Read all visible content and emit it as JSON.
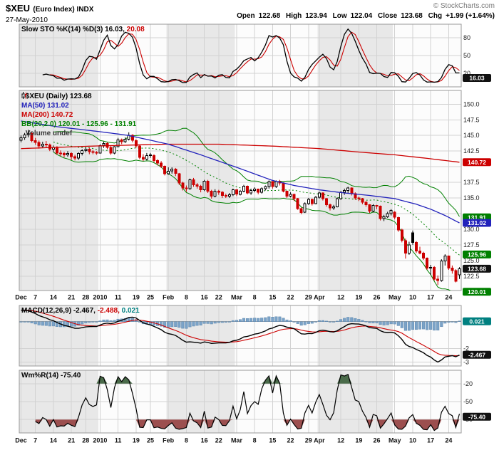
{
  "header": {
    "symbol": "$XEU",
    "name": "(Euro Index) INDX",
    "date": "27-May-2010",
    "copyright": "© StockCharts.com",
    "quote": {
      "open_l": "Open",
      "open_v": "122.68",
      "high_l": "High",
      "high_v": "123.94",
      "low_l": "Low",
      "low_v": "122.04",
      "close_l": "Close",
      "close_v": "123.68",
      "chg_l": "Chg",
      "chg_v": "+1.99 (+1.64%)"
    }
  },
  "panels": {
    "stoch": {
      "label": "Slow STO %K(14) %D(3)",
      "k_value": "16.03,",
      "d_value": "20.08"
    },
    "main": {
      "symbol_label": "$XEU (Daily)",
      "close_value": "123.68",
      "ma50_label": "MA(50) 131.02",
      "ma200_label": "MA(200) 140.72",
      "bb_label": "BB(20,2.0) 120.01 - 125.96 - 131.91",
      "volume_label": "Volume undef"
    },
    "macd": {
      "label": "MACD(12,26,9)",
      "macd_value": "-2.467,",
      "signal_value": "-2.488,",
      "hist_value": "0.021"
    },
    "wmr": {
      "label": "Wm%R(14)",
      "value": "-75.40"
    }
  },
  "chart_data": {
    "type": "candlestick-multi-panel",
    "title": "$XEU (Euro Index) INDX - Daily",
    "x_ticks": [
      {
        "i": 0,
        "label": "Dec"
      },
      {
        "i": 4,
        "label": "7"
      },
      {
        "i": 9,
        "label": "14"
      },
      {
        "i": 14,
        "label": "21"
      },
      {
        "i": 18,
        "label": "28"
      },
      {
        "i": 22,
        "label": "2010"
      },
      {
        "i": 27,
        "label": "11"
      },
      {
        "i": 32,
        "label": "19"
      },
      {
        "i": 36,
        "label": "25"
      },
      {
        "i": 41,
        "label": "Feb"
      },
      {
        "i": 46,
        "label": "8"
      },
      {
        "i": 51,
        "label": "16"
      },
      {
        "i": 55,
        "label": "22"
      },
      {
        "i": 60,
        "label": "Mar"
      },
      {
        "i": 65,
        "label": "8"
      },
      {
        "i": 70,
        "label": "15"
      },
      {
        "i": 75,
        "label": "22"
      },
      {
        "i": 80,
        "label": "29"
      },
      {
        "i": 83,
        "label": "Apr"
      },
      {
        "i": 89,
        "label": "12"
      },
      {
        "i": 94,
        "label": "19"
      },
      {
        "i": 99,
        "label": "26"
      },
      {
        "i": 104,
        "label": "May"
      },
      {
        "i": 109,
        "label": "10"
      },
      {
        "i": 114,
        "label": "17"
      },
      {
        "i": 119,
        "label": "24"
      }
    ],
    "month_bands": [
      {
        "start": 0,
        "end": 21,
        "shade": true
      },
      {
        "start": 22,
        "end": 40,
        "shade": false
      },
      {
        "start": 41,
        "end": 59,
        "shade": true
      },
      {
        "start": 60,
        "end": 82,
        "shade": false
      },
      {
        "start": 83,
        "end": 103,
        "shade": true
      },
      {
        "start": 104,
        "end": 122,
        "shade": false
      }
    ],
    "ohlc": [
      [
        144.2,
        145.0,
        143.9,
        144.6
      ],
      [
        144.6,
        145.4,
        144.3,
        145.1
      ],
      [
        145.1,
        145.9,
        144.7,
        145.3
      ],
      [
        145.3,
        145.5,
        143.9,
        144.2
      ],
      [
        144.2,
        144.6,
        143.5,
        143.9
      ],
      [
        143.9,
        144.2,
        142.9,
        143.3
      ],
      [
        143.3,
        144.0,
        143.0,
        143.6
      ],
      [
        143.6,
        144.1,
        143.1,
        143.5
      ],
      [
        143.5,
        143.7,
        142.5,
        142.8
      ],
      [
        142.8,
        143.4,
        142.4,
        143.1
      ],
      [
        143.1,
        143.3,
        141.9,
        142.2
      ],
      [
        142.2,
        142.6,
        141.7,
        142.1
      ],
      [
        142.1,
        142.4,
        141.5,
        141.9
      ],
      [
        141.9,
        142.5,
        141.6,
        142.1
      ],
      [
        142.1,
        142.3,
        141.1,
        141.6
      ],
      [
        141.6,
        141.9,
        141.0,
        141.4
      ],
      [
        141.4,
        142.3,
        141.1,
        142.1
      ],
      [
        142.1,
        142.8,
        141.8,
        142.6
      ],
      [
        142.6,
        143.0,
        142.3,
        142.8
      ],
      [
        142.8,
        143.0,
        142.0,
        142.4
      ],
      [
        142.4,
        142.7,
        142.0,
        142.3
      ],
      [
        142.3,
        142.5,
        141.9,
        142.2
      ],
      [
        142.2,
        143.6,
        142.1,
        143.4
      ],
      [
        143.4,
        144.0,
        143.0,
        143.7
      ],
      [
        143.7,
        143.9,
        142.8,
        143.1
      ],
      [
        143.1,
        143.3,
        141.9,
        142.2
      ],
      [
        142.2,
        143.3,
        142.0,
        143.2
      ],
      [
        143.2,
        144.6,
        143.1,
        144.3
      ],
      [
        144.3,
        144.5,
        143.6,
        144.0
      ],
      [
        144.0,
        144.7,
        143.8,
        144.4
      ],
      [
        144.4,
        145.5,
        144.2,
        145.0
      ],
      [
        145.0,
        145.2,
        143.9,
        144.2
      ],
      [
        144.2,
        144.4,
        143.0,
        143.3
      ],
      [
        143.3,
        143.5,
        141.2,
        141.5
      ],
      [
        141.5,
        142.0,
        140.9,
        141.2
      ],
      [
        141.2,
        142.2,
        141.0,
        141.8
      ],
      [
        141.9,
        142.2,
        141.4,
        141.8
      ],
      [
        141.8,
        142.0,
        140.7,
        141.0
      ],
      [
        141.0,
        141.2,
        140.2,
        140.6
      ],
      [
        140.6,
        140.9,
        139.8,
        140.1
      ],
      [
        140.1,
        140.2,
        138.6,
        138.9
      ],
      [
        138.9,
        139.9,
        138.7,
        139.3
      ],
      [
        139.3,
        139.9,
        138.9,
        139.6
      ],
      [
        139.6,
        139.8,
        138.5,
        138.9
      ],
      [
        138.9,
        139.0,
        137.1,
        137.4
      ],
      [
        137.4,
        137.6,
        136.2,
        136.6
      ],
      [
        136.6,
        137.0,
        136.0,
        136.5
      ],
      [
        136.5,
        138.1,
        136.3,
        137.9
      ],
      [
        137.9,
        138.2,
        136.8,
        137.1
      ],
      [
        137.1,
        137.4,
        136.5,
        136.9
      ],
      [
        136.9,
        137.1,
        135.9,
        136.3
      ],
      [
        136.3,
        137.9,
        136.1,
        137.7
      ],
      [
        137.7,
        137.9,
        135.8,
        136.1
      ],
      [
        136.1,
        136.3,
        134.9,
        135.3
      ],
      [
        135.3,
        136.4,
        135.1,
        136.1
      ],
      [
        136.1,
        136.3,
        135.5,
        135.9
      ],
      [
        135.9,
        136.1,
        135.0,
        135.4
      ],
      [
        135.4,
        135.7,
        135.0,
        135.3
      ],
      [
        135.3,
        135.8,
        135.0,
        135.5
      ],
      [
        135.5,
        136.5,
        135.3,
        136.3
      ],
      [
        136.3,
        136.4,
        135.3,
        135.6
      ],
      [
        135.6,
        136.3,
        135.4,
        136.1
      ],
      [
        136.1,
        137.1,
        135.9,
        136.9
      ],
      [
        136.9,
        137.0,
        135.6,
        135.8
      ],
      [
        135.8,
        136.5,
        135.5,
        136.2
      ],
      [
        136.2,
        136.7,
        135.9,
        136.4
      ],
      [
        136.4,
        136.5,
        135.6,
        135.9
      ],
      [
        135.9,
        136.7,
        135.7,
        136.5
      ],
      [
        136.5,
        137.0,
        136.2,
        136.8
      ],
      [
        136.8,
        137.8,
        136.5,
        137.6
      ],
      [
        137.6,
        137.7,
        136.5,
        136.8
      ],
      [
        136.8,
        137.8,
        136.6,
        137.6
      ],
      [
        137.6,
        137.9,
        137.0,
        137.4
      ],
      [
        137.4,
        137.5,
        135.9,
        136.1
      ],
      [
        136.1,
        136.2,
        135.0,
        135.3
      ],
      [
        135.3,
        135.9,
        135.1,
        135.6
      ],
      [
        135.6,
        135.7,
        134.5,
        134.9
      ],
      [
        134.9,
        135.0,
        133.1,
        133.3
      ],
      [
        133.3,
        133.5,
        132.4,
        132.7
      ],
      [
        132.7,
        134.3,
        132.6,
        134.1
      ],
      [
        134.1,
        135.0,
        133.9,
        134.8
      ],
      [
        134.8,
        134.9,
        133.8,
        134.1
      ],
      [
        134.1,
        135.3,
        134.0,
        135.1
      ],
      [
        135.1,
        136.0,
        134.9,
        135.8
      ],
      [
        135.8,
        135.9,
        134.6,
        134.9
      ],
      [
        134.9,
        135.0,
        133.6,
        133.9
      ],
      [
        133.9,
        134.1,
        133.0,
        133.4
      ],
      [
        133.4,
        133.9,
        133.1,
        133.6
      ],
      [
        133.6,
        135.1,
        133.5,
        134.9
      ],
      [
        134.9,
        136.1,
        134.7,
        135.9
      ],
      [
        135.9,
        136.5,
        135.5,
        136.2
      ],
      [
        136.2,
        136.8,
        135.8,
        136.6
      ],
      [
        136.6,
        136.7,
        135.4,
        135.7
      ],
      [
        135.7,
        135.9,
        134.7,
        135.0
      ],
      [
        135.0,
        135.2,
        134.5,
        134.9
      ],
      [
        134.9,
        135.0,
        134.0,
        134.3
      ],
      [
        134.3,
        134.5,
        133.6,
        133.9
      ],
      [
        133.9,
        134.0,
        132.6,
        132.9
      ],
      [
        132.9,
        134.0,
        132.7,
        133.8
      ],
      [
        133.8,
        133.9,
        133.2,
        133.7
      ],
      [
        133.7,
        133.8,
        131.4,
        131.7
      ],
      [
        131.7,
        132.3,
        131.3,
        132.0
      ],
      [
        132.0,
        132.8,
        131.8,
        132.5
      ],
      [
        132.5,
        133.2,
        132.2,
        133.0
      ],
      [
        132.7,
        132.9,
        131.6,
        131.9
      ],
      [
        131.9,
        132.0,
        129.6,
        129.9
      ],
      [
        129.9,
        130.1,
        127.9,
        128.2
      ],
      [
        128.2,
        128.5,
        125.3,
        126.2
      ],
      [
        126.2,
        128.0,
        125.9,
        127.5
      ],
      [
        129.4,
        129.8,
        127.5,
        127.9
      ],
      [
        127.9,
        128.1,
        126.2,
        126.5
      ],
      [
        126.5,
        127.2,
        126.0,
        126.2
      ],
      [
        126.2,
        126.4,
        125.1,
        125.4
      ],
      [
        125.4,
        125.5,
        123.5,
        123.8
      ],
      [
        123.8,
        124.3,
        122.7,
        123.9
      ],
      [
        123.9,
        124.1,
        121.8,
        122.0
      ],
      [
        122.0,
        122.6,
        121.1,
        121.8
      ],
      [
        121.8,
        125.2,
        121.6,
        124.9
      ],
      [
        124.9,
        126.0,
        124.2,
        125.7
      ],
      [
        125.7,
        125.8,
        123.5,
        123.8
      ],
      [
        123.8,
        124.2,
        122.9,
        123.4
      ],
      [
        123.4,
        123.6,
        121.5,
        121.69
      ],
      [
        122.68,
        123.94,
        122.04,
        123.68
      ]
    ],
    "overlays": {
      "ma50": {
        "period": 50,
        "last": 131.02,
        "points": [
          [
            0,
            147.3
          ],
          [
            10,
            146.4
          ],
          [
            22,
            145.6
          ],
          [
            30,
            145.0
          ],
          [
            41,
            143.6
          ],
          [
            50,
            141.9
          ],
          [
            60,
            139.9
          ],
          [
            70,
            137.8
          ],
          [
            76,
            137.0
          ],
          [
            83,
            136.3
          ],
          [
            90,
            135.8
          ],
          [
            97,
            135.4
          ],
          [
            104,
            134.9
          ],
          [
            110,
            134.0
          ],
          [
            114,
            133.2
          ],
          [
            118,
            132.2
          ],
          [
            122,
            131.02
          ]
        ]
      },
      "ma200": {
        "period": 200,
        "last": 140.72,
        "points": [
          [
            0,
            142.9
          ],
          [
            20,
            143.3
          ],
          [
            40,
            143.6
          ],
          [
            55,
            143.6
          ],
          [
            70,
            143.3
          ],
          [
            83,
            142.9
          ],
          [
            95,
            142.3
          ],
          [
            104,
            141.9
          ],
          [
            112,
            141.4
          ],
          [
            122,
            140.72
          ]
        ]
      },
      "bollinger": {
        "period": 20,
        "stdev": 2.0,
        "last_lower": 120.01,
        "last_mid": 125.96,
        "last_upper": 131.91
      }
    },
    "indicators": {
      "stoch": {
        "k": 14,
        "d": 3,
        "last_k": 16.03,
        "last_d": 20.08,
        "gridlines": [
          80,
          50,
          20
        ],
        "range": [
          0,
          100
        ]
      },
      "macd": {
        "fast": 12,
        "slow": 26,
        "signal": 9,
        "last_macd": -2.467,
        "last_signal": -2.488,
        "last_hist": 0.021,
        "axis_labels": [
          -2,
          -3
        ],
        "range": [
          -3.3,
          1.2
        ]
      },
      "williams_r": {
        "period": 14,
        "last": -75.4,
        "gridlines": [
          -20,
          -50,
          -80
        ],
        "overbought": -20,
        "oversold": -80,
        "range": [
          -100,
          0
        ]
      }
    },
    "y_axis_main": {
      "visible_ticks": [
        150.0,
        147.5,
        145.0,
        142.5,
        137.5,
        135.0,
        130.0,
        127.5,
        125.0,
        122.5
      ],
      "grid_min": 122.5,
      "grid_max": 150.0,
      "grid_step": 2.5,
      "range": [
        120.2,
        152.2
      ]
    },
    "badges": {
      "main": [
        {
          "v": 140.72,
          "text": "140.72",
          "color": "#cc0000"
        },
        {
          "v": 131.91,
          "text": "131.91",
          "color": "#008000"
        },
        {
          "v": 131.02,
          "text": "131.02",
          "color": "#2222bb"
        },
        {
          "v": 125.96,
          "text": "125.96",
          "color": "#008000"
        },
        {
          "v": 123.68,
          "text": "123.68",
          "color": "#111111"
        },
        {
          "v": 120.01,
          "text": "120.01",
          "color": "#008000"
        }
      ],
      "stoch": [
        {
          "v": 16.03,
          "text": "16.03",
          "color": "#111111"
        }
      ],
      "macd": [
        {
          "v": 0.021,
          "text": "0.021",
          "color": "#008080"
        },
        {
          "v": -2.467,
          "text": "-2.467",
          "color": "#111111"
        }
      ],
      "wmr": [
        {
          "v": -75.4,
          "text": "-75.40",
          "color": "#111111"
        }
      ]
    },
    "colors": {
      "up": "#000000",
      "down": "#cc0000",
      "ma50": "#2222bb",
      "ma200": "#cc0000",
      "bb": "#008000",
      "stoch_k": "#000000",
      "stoch_d": "#cc0000",
      "macd_line": "#000000",
      "signal_line": "#cc0000",
      "hist_fill": "#7ba3c8",
      "hist_stroke": "#5d87ad",
      "wmr_line": "#000000",
      "wmr_high_fill": "#4a6b4a",
      "wmr_low_fill": "#9c4f4f",
      "band_gray": "#e8e8e8",
      "band_white": "#fcfcfc",
      "grid": "#d2d2d2",
      "border": "#999999",
      "zero_line": "#aaaaaa",
      "axis_text": "#222222",
      "tick_text": "#111111"
    }
  }
}
